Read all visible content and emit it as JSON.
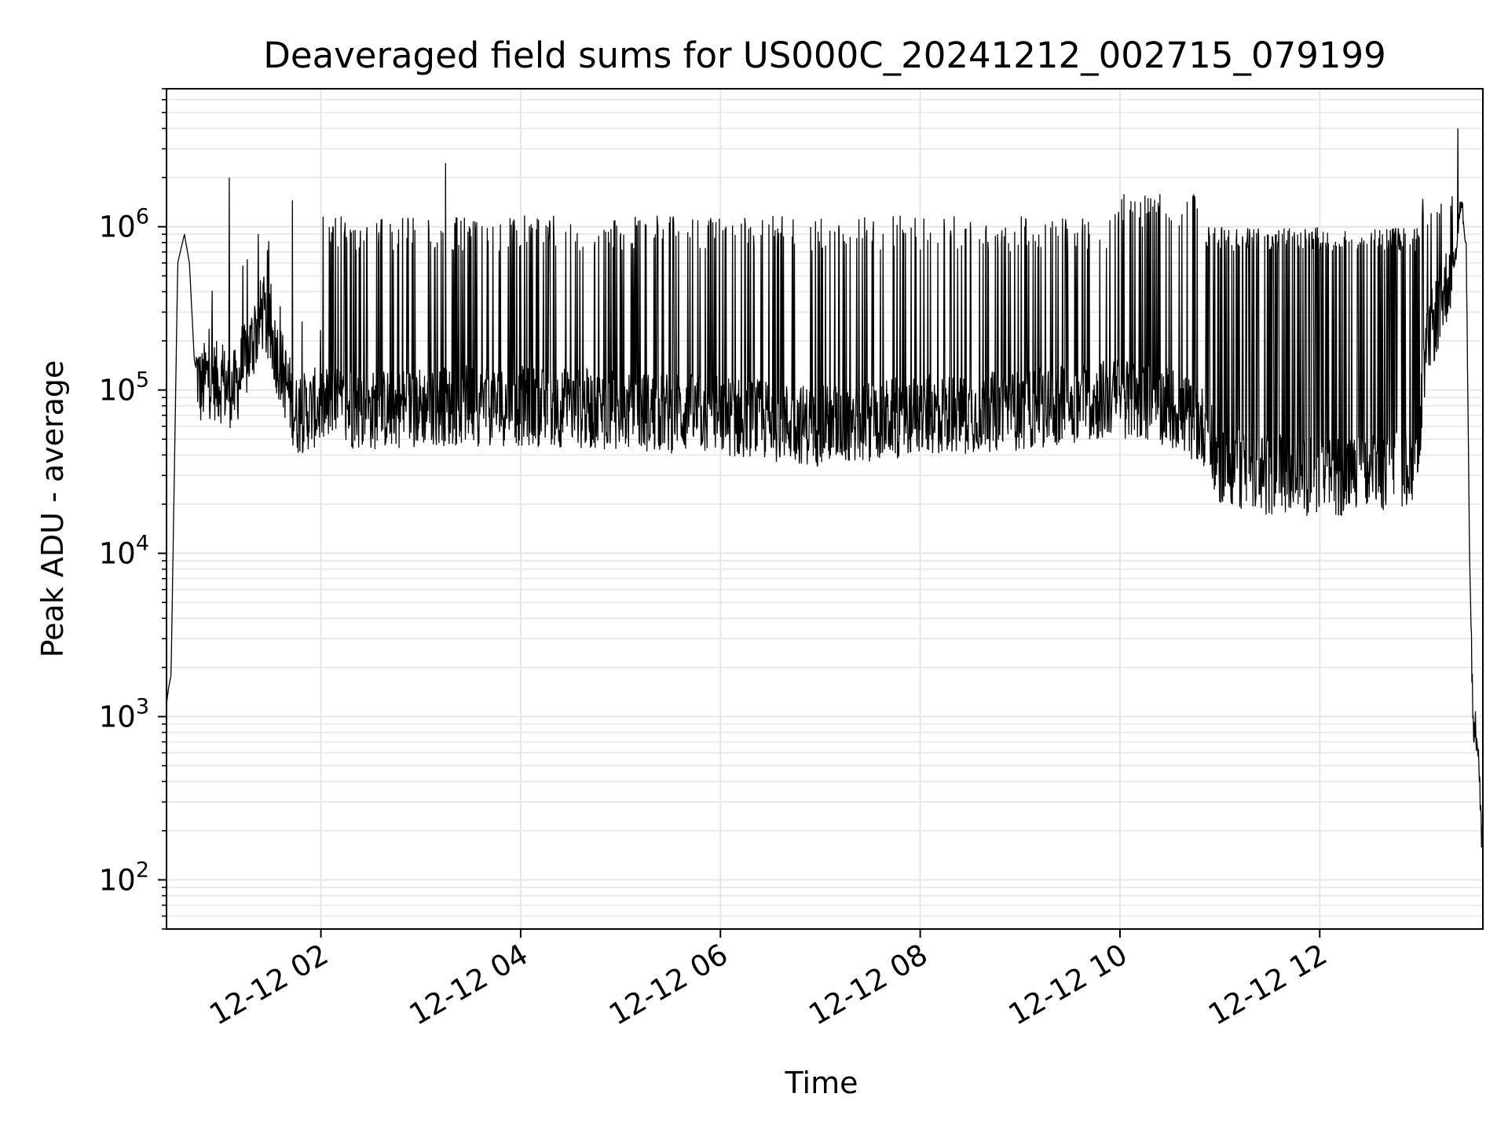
{
  "chart_data": {
    "type": "line",
    "title": "Deaveraged field sums for US000C_20241212_002715_079199",
    "xlabel": "Time",
    "ylabel": "Peak ADU - average",
    "x_axis": {
      "kind": "time",
      "range": [
        "2024-12-12T00:27:15",
        "2024-12-12T13:38:00"
      ],
      "tick_values": [
        "2024-12-12T02:00",
        "2024-12-12T04:00",
        "2024-12-12T06:00",
        "2024-12-12T08:00",
        "2024-12-12T10:00",
        "2024-12-12T12:00"
      ],
      "tick_labels": [
        "12-12 02",
        "12-12 04",
        "12-12 06",
        "12-12 08",
        "12-12 10",
        "12-12 12"
      ]
    },
    "y_axis": {
      "scale": "log",
      "ylim": [
        50,
        7000000
      ],
      "tick_values": [
        100,
        1000,
        10000,
        100000,
        1000000
      ],
      "tick_labels": [
        {
          "base": "10",
          "exp": "2"
        },
        {
          "base": "10",
          "exp": "3"
        },
        {
          "base": "10",
          "exp": "4"
        },
        {
          "base": "10",
          "exp": "5"
        },
        {
          "base": "10",
          "exp": "6"
        }
      ]
    },
    "grid": true,
    "legend": "none",
    "line_color": "#000000",
    "grid_color": "#e6e6e6",
    "series": [
      {
        "x": [
          "2024-12-12T00:27:15",
          "2024-12-12T00:28:30",
          "2024-12-12T00:30:00",
          "2024-12-12T00:34:00",
          "2024-12-12T00:38:00",
          "2024-12-12T00:41:00",
          "2024-12-12T00:44:00",
          "2024-12-12T00:48:00",
          "2024-12-12T00:51:00",
          "2024-12-12T01:00:00",
          "2024-12-12T01:08:00",
          "2024-12-12T01:15:00",
          "2024-12-12T01:25:00",
          "2024-12-12T01:35:00",
          "2024-12-12T01:45:00",
          "2024-12-12T02:00:00",
          "2024-12-12T02:30:00",
          "2024-12-12T03:00:00",
          "2024-12-12T03:30:00",
          "2024-12-12T04:00:00",
          "2024-12-12T05:00:00",
          "2024-12-12T06:00:00",
          "2024-12-12T07:00:00",
          "2024-12-12T08:00:00",
          "2024-12-12T09:00:00",
          "2024-12-12T10:00:00",
          "2024-12-12T10:30:00",
          "2024-12-12T10:50:00",
          "2024-12-12T11:00:00",
          "2024-12-12T11:30:00",
          "2024-12-12T12:00:00",
          "2024-12-12T12:30:00",
          "2024-12-12T12:58:00",
          "2024-12-12T13:05:00",
          "2024-12-12T13:15:00",
          "2024-12-12T13:22:00",
          "2024-12-12T13:25:00",
          "2024-12-12T13:28:00",
          "2024-12-12T13:30:00",
          "2024-12-12T13:32:00",
          "2024-12-12T13:35:00",
          "2024-12-12T13:37:00"
        ],
        "y": [
          1200,
          1500,
          1800,
          600000,
          900000,
          600000,
          150000,
          100000,
          120000,
          110000,
          100000,
          150000,
          300000,
          150000,
          70000,
          80000,
          75000,
          80000,
          80000,
          80000,
          75000,
          70000,
          60000,
          70000,
          75000,
          90000,
          80000,
          60000,
          35000,
          30000,
          30000,
          30000,
          35000,
          200000,
          400000,
          700000,
          1500000,
          800000,
          10000,
          1000,
          700,
          200
        ]
      }
    ],
    "spikes": [
      {
        "x": "2024-12-12T01:05:00",
        "y": 2000000
      },
      {
        "x": "2024-12-12T01:43:00",
        "y": 1450000
      },
      {
        "x": "2024-12-12T03:15:00",
        "y": 2450000
      },
      {
        "x": "2024-12-12T13:23:00",
        "y": 4000000
      }
    ]
  }
}
